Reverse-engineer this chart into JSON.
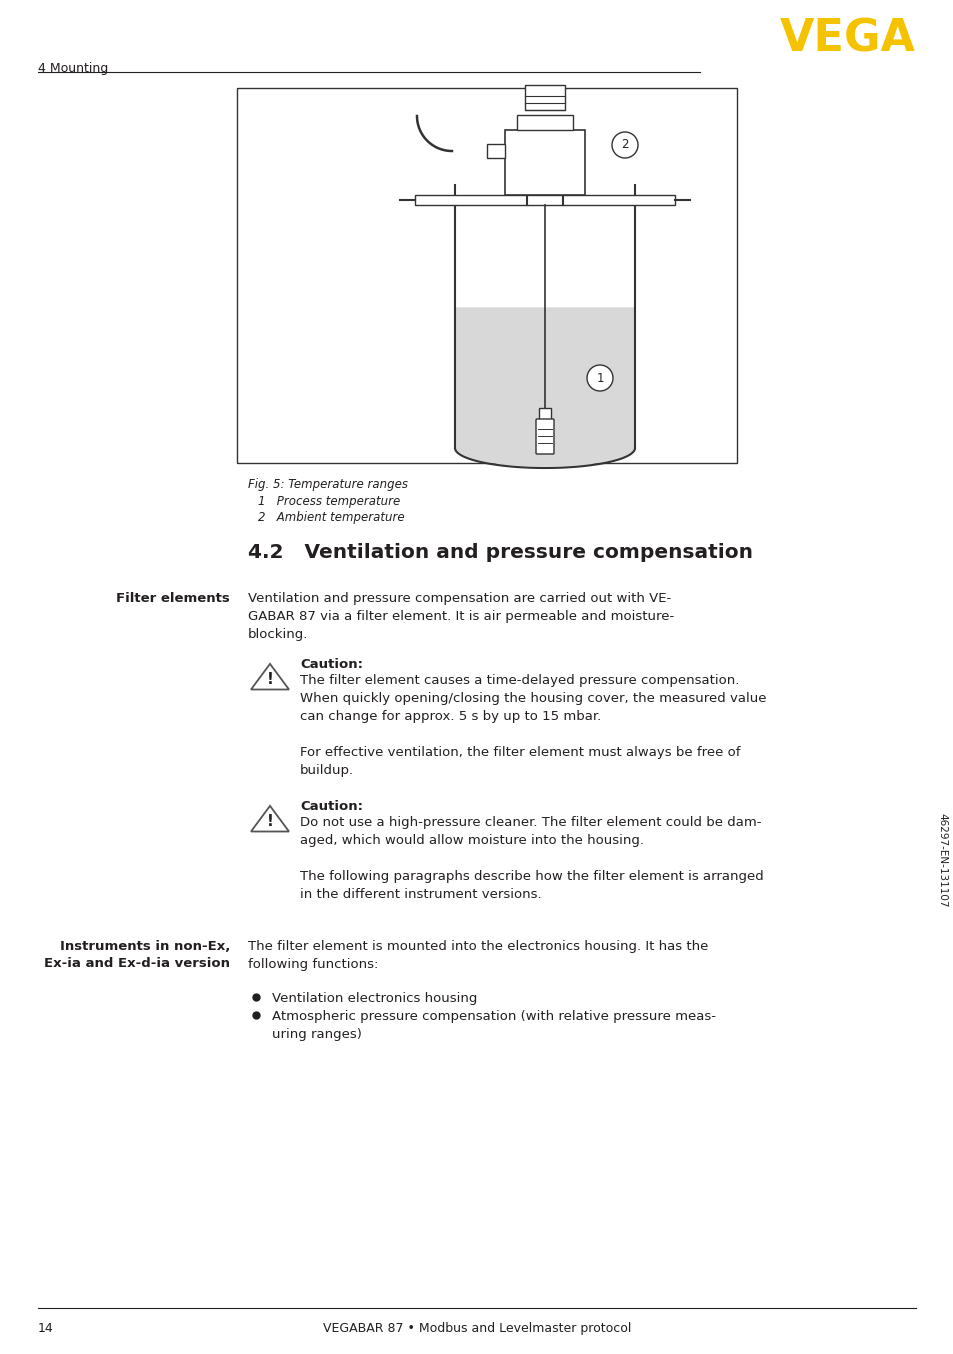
{
  "page_number": "14",
  "footer_text": "VEGABAR 87 • Modbus and Levelmaster protocol",
  "header_section": "4 Mounting",
  "vega_logo": "VEGA",
  "fig_caption": "Fig. 5: Temperature ranges",
  "fig_items": [
    "1   Process temperature",
    "2   Ambient temperature"
  ],
  "section_title": "4.2   Ventilation and pressure compensation",
  "left_label_1": "Filter elements",
  "para_1": "Ventilation and pressure compensation are carried out with VE-\nGABAR 87 via a filter element. It is air permeable and moisture-\nblocking.",
  "caution_1_title": "Caution:",
  "caution_1_text": "The filter element causes a time-delayed pressure compensation.\nWhen quickly opening/closing the housing cover, the measured value\ncan change for approx. 5 s by up to 15 mbar.\n\nFor effective ventilation, the filter element must always be free of\nbuildup.",
  "caution_2_title": "Caution:",
  "caution_2_text": "Do not use a high-pressure cleaner. The filter element could be dam-\naged, which would allow moisture into the housing.\n\nThe following paragraphs describe how the filter element is arranged\nin the different instrument versions.",
  "left_label_2a": "Instruments in non-Ex,",
  "left_label_2b": "Ex-ia and Ex-d-ia version",
  "para_2": "The filter element is mounted into the electronics housing. It has the\nfollowing functions:",
  "bullet_1": "Ventilation electronics housing",
  "bullet_2": "Atmospheric pressure compensation (with relative pressure meas-\nuring ranges)",
  "side_text": "46297-EN-131107",
  "bg_color": "#ffffff",
  "text_color": "#231f20",
  "line_color": "#231f20",
  "vega_color": "#f5c200",
  "draw_color": "#333333",
  "liquid_color": "#d8d8d8"
}
